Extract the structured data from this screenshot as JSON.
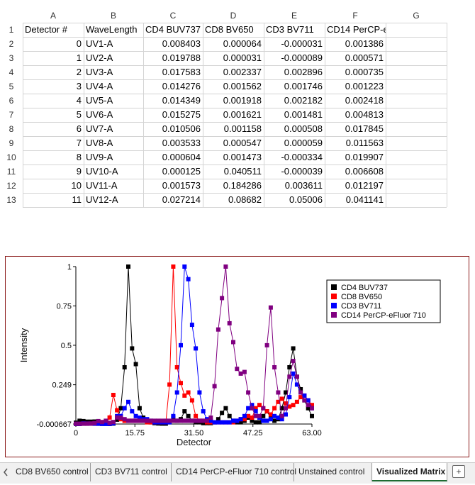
{
  "spreadsheet": {
    "column_letters": [
      "A",
      "B",
      "C",
      "D",
      "E",
      "F",
      "G"
    ],
    "row_numbers": [
      "1",
      "2",
      "3",
      "4",
      "5",
      "6",
      "7",
      "8",
      "9",
      "10",
      "11",
      "12",
      "13"
    ],
    "header_row": [
      "Detector #",
      "WaveLength",
      "CD4 BUV737",
      "CD8 BV650",
      "CD3 BV711",
      "CD14 PerCP-eFluor 710",
      ""
    ],
    "rows": [
      [
        "0",
        "UV1-A",
        "0.008403",
        "0.000064",
        "-0.000031",
        "0.001386"
      ],
      [
        "1",
        "UV2-A",
        "0.019788",
        "0.000031",
        "-0.000089",
        "0.000571"
      ],
      [
        "2",
        "UV3-A",
        "0.017583",
        "0.002337",
        "0.002896",
        "0.000735"
      ],
      [
        "3",
        "UV4-A",
        "0.014276",
        "0.001562",
        "0.001746",
        "0.001223"
      ],
      [
        "4",
        "UV5-A",
        "0.014349",
        "0.001918",
        "0.002182",
        "0.002418"
      ],
      [
        "5",
        "UV6-A",
        "0.015275",
        "0.001621",
        "0.001481",
        "0.004813"
      ],
      [
        "6",
        "UV7-A",
        "0.010506",
        "0.001158",
        "0.000508",
        "0.017845"
      ],
      [
        "7",
        "UV8-A",
        "0.003533",
        "0.000547",
        "0.000059",
        "0.011563"
      ],
      [
        "8",
        "UV9-A",
        "0.000604",
        "0.001473",
        "-0.000334",
        "0.019907"
      ],
      [
        "9",
        "UV10-A",
        "0.000125",
        "0.040511",
        "-0.000039",
        "0.006608"
      ],
      [
        "10",
        "UV11-A",
        "0.001573",
        "0.184286",
        "0.003611",
        "0.012197"
      ],
      [
        "11",
        "UV12-A",
        "0.027214",
        "0.08682",
        "0.05006",
        "0.041141"
      ]
    ]
  },
  "chart_data": {
    "type": "line",
    "xlabel": "Detector",
    "ylabel": "Intensity",
    "xlim": [
      0,
      63
    ],
    "ylim": [
      -0.000667,
      1
    ],
    "x_ticks": [
      "0",
      "15.75",
      "31.50",
      "47.25",
      "63.00"
    ],
    "y_ticks": [
      "1",
      "0.75",
      "0.5",
      "0.249",
      "-0.000667"
    ],
    "legend_position": "top-right",
    "series": [
      {
        "name": "CD4 BUV737",
        "color": "#000000",
        "x": [
          0,
          1,
          2,
          3,
          4,
          5,
          6,
          7,
          8,
          9,
          10,
          11,
          12,
          13,
          14,
          15,
          16,
          17,
          18,
          19,
          20,
          21,
          22,
          23,
          24,
          25,
          26,
          27,
          28,
          29,
          30,
          31,
          32,
          33,
          34,
          35,
          36,
          37,
          38,
          39,
          40,
          41,
          42,
          43,
          44,
          45,
          46,
          47,
          48,
          49,
          50,
          51,
          52,
          53,
          54,
          55,
          56,
          57,
          58,
          59,
          60,
          61,
          62,
          63
        ],
        "y": [
          0.008,
          0.02,
          0.018,
          0.014,
          0.014,
          0.015,
          0.011,
          0.004,
          0.001,
          0,
          0.002,
          0.027,
          0.1,
          0.36,
          1,
          0.48,
          0.38,
          0.1,
          0.04,
          0.02,
          0.01,
          0.005,
          0.003,
          0.002,
          0.002,
          0.01,
          0.04,
          0.02,
          0.03,
          0.08,
          0.05,
          0.02,
          0.01,
          0.01,
          0.005,
          0.005,
          0.005,
          0.01,
          0.03,
          0.07,
          0.1,
          0.05,
          0.02,
          0.01,
          0.01,
          0.02,
          0.04,
          0.02,
          0.01,
          0.01,
          0.05,
          0.08,
          0.04,
          0.02,
          0.03,
          0.1,
          0.2,
          0.36,
          0.48,
          0.3,
          0.22,
          0.15,
          0.1,
          0.05
        ]
      },
      {
        "name": "CD8 BV650",
        "color": "#ff0000",
        "x": [
          0,
          1,
          2,
          3,
          4,
          5,
          6,
          7,
          8,
          9,
          10,
          11,
          12,
          13,
          14,
          15,
          16,
          17,
          18,
          19,
          20,
          21,
          22,
          23,
          24,
          25,
          26,
          27,
          28,
          29,
          30,
          31,
          32,
          33,
          34,
          35,
          36,
          37,
          38,
          39,
          40,
          41,
          42,
          43,
          44,
          45,
          46,
          47,
          48,
          49,
          50,
          51,
          52,
          53,
          54,
          55,
          56,
          57,
          58,
          59,
          60,
          61,
          62,
          63
        ],
        "y": [
          0,
          0,
          0.002,
          0.002,
          0.002,
          0.002,
          0.001,
          0.001,
          0.001,
          0.041,
          0.184,
          0.087,
          0.03,
          0.02,
          0.02,
          0.02,
          0.02,
          0.02,
          0.02,
          0.01,
          0.01,
          0.01,
          0.01,
          0.01,
          0.01,
          0.25,
          1,
          0.36,
          0.26,
          0.18,
          0.2,
          0.15,
          0.05,
          0.02,
          0.02,
          0.01,
          0.01,
          0.01,
          0.01,
          0.01,
          0.01,
          0.01,
          0.01,
          0.02,
          0.03,
          0.03,
          0.05,
          0.04,
          0.1,
          0.12,
          0.1,
          0.08,
          0.06,
          0.1,
          0.14,
          0.16,
          0.13,
          0.11,
          0.12,
          0.14,
          0.17,
          0.18,
          0.15,
          0.12
        ]
      },
      {
        "name": "CD3 BV711",
        "color": "#0000ff",
        "x": [
          0,
          1,
          2,
          3,
          4,
          5,
          6,
          7,
          8,
          9,
          10,
          11,
          12,
          13,
          14,
          15,
          16,
          17,
          18,
          19,
          20,
          21,
          22,
          23,
          24,
          25,
          26,
          27,
          28,
          29,
          30,
          31,
          32,
          33,
          34,
          35,
          36,
          37,
          38,
          39,
          40,
          41,
          42,
          43,
          44,
          45,
          46,
          47,
          48,
          49,
          50,
          51,
          52,
          53,
          54,
          55,
          56,
          57,
          58,
          59,
          60,
          61,
          62,
          63
        ],
        "y": [
          0,
          0,
          0.003,
          0.002,
          0.002,
          0.001,
          0.001,
          0,
          0,
          0,
          0.004,
          0.05,
          0.05,
          0.1,
          0.14,
          0.08,
          0.05,
          0.04,
          0.03,
          0.03,
          0.02,
          0.01,
          0.01,
          0.01,
          0.01,
          0.01,
          0.05,
          0.2,
          0.5,
          1,
          0.92,
          0.63,
          0.48,
          0.2,
          0.08,
          0.03,
          0.02,
          0.01,
          0.01,
          0.01,
          0.01,
          0.01,
          0.02,
          0.02,
          0.03,
          0.05,
          0.1,
          0.12,
          0.08,
          0.04,
          0.02,
          0.02,
          0.03,
          0.05,
          0.04,
          0.03,
          0.06,
          0.17,
          0.32,
          0.25,
          0.2,
          0.18,
          0.15,
          0.1
        ]
      },
      {
        "name": "CD14 PerCP-eFluor 710",
        "color": "#800080",
        "x": [
          0,
          1,
          2,
          3,
          4,
          5,
          6,
          7,
          8,
          9,
          10,
          11,
          12,
          13,
          14,
          15,
          16,
          17,
          18,
          19,
          20,
          21,
          22,
          23,
          24,
          25,
          26,
          27,
          28,
          29,
          30,
          31,
          32,
          33,
          34,
          35,
          36,
          37,
          38,
          39,
          40,
          41,
          42,
          43,
          44,
          45,
          46,
          47,
          48,
          49,
          50,
          51,
          52,
          53,
          54,
          55,
          56,
          57,
          58,
          59,
          60,
          61,
          62,
          63
        ],
        "y": [
          0.001,
          0.001,
          0.001,
          0.001,
          0.002,
          0.005,
          0.018,
          0.012,
          0.02,
          0.007,
          0.012,
          0.041,
          0.04,
          0.03,
          0.02,
          0.02,
          0.02,
          0.02,
          0.02,
          0.02,
          0.02,
          0.02,
          0.02,
          0.02,
          0.02,
          0.02,
          0.02,
          0.02,
          0.02,
          0.02,
          0.02,
          0.02,
          0.02,
          0.02,
          0.02,
          0.02,
          0.04,
          0.24,
          0.6,
          0.8,
          1,
          0.64,
          0.52,
          0.35,
          0.32,
          0.33,
          0.2,
          0.1,
          0.05,
          0.05,
          0.1,
          0.5,
          0.74,
          0.36,
          0.2,
          0.05,
          0.1,
          0.3,
          0.4,
          0.3,
          0.2,
          0.15,
          0.12,
          0.1
        ]
      }
    ]
  },
  "tabs": [
    {
      "label": "CD8 BV650 control",
      "active": false
    },
    {
      "label": "CD3 BV711 control",
      "active": false
    },
    {
      "label": "CD14 PerCP-eFluor 710 control",
      "active": false
    },
    {
      "label": "Unstained control",
      "active": false
    },
    {
      "label": "Visualized Matrix",
      "active": true
    }
  ],
  "icons": {
    "add_sheet": "plus-icon",
    "tab_nav": "chevron-left-icon"
  }
}
